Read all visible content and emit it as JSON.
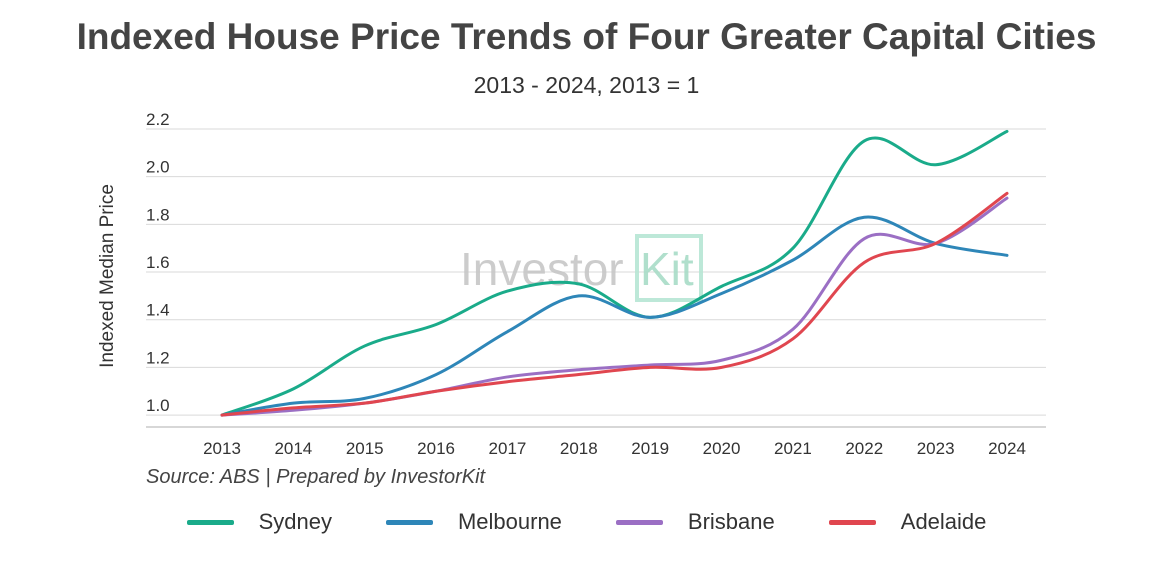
{
  "chart_data": {
    "type": "line",
    "title": "Indexed House Price Trends of Four Greater Capital Cities",
    "subtitle": "2013 - 2024, 2013 = 1",
    "xlabel": "",
    "ylabel": "Indexed Median Price",
    "x": [
      "2013",
      "2014",
      "2015",
      "2016",
      "2017",
      "2018",
      "2019",
      "2020",
      "2021",
      "2022",
      "2023",
      "2024"
    ],
    "ylim": [
      0.95,
      2.2
    ],
    "yticks": [
      {
        "value": 1.0,
        "label": "1.0"
      },
      {
        "value": 1.2,
        "label": "1.2"
      },
      {
        "value": 1.4,
        "label": "1.4"
      },
      {
        "value": 1.6,
        "label": "1.6"
      },
      {
        "value": 1.8,
        "label": "1.8"
      },
      {
        "value": 2.0,
        "label": "2.0"
      },
      {
        "value": 2.2,
        "label": "2.2"
      }
    ],
    "grid": true,
    "legend_position": "bottom",
    "series": [
      {
        "name": "Sydney",
        "color": "#1aab8a",
        "values": [
          1.0,
          1.11,
          1.29,
          1.38,
          1.52,
          1.55,
          1.41,
          1.54,
          1.7,
          2.15,
          2.05,
          2.19
        ]
      },
      {
        "name": "Melbourne",
        "color": "#2e86b8",
        "values": [
          1.0,
          1.05,
          1.07,
          1.17,
          1.35,
          1.5,
          1.41,
          1.51,
          1.65,
          1.83,
          1.72,
          1.67
        ]
      },
      {
        "name": "Brisbane",
        "color": "#9b6fc4",
        "values": [
          1.0,
          1.02,
          1.05,
          1.1,
          1.16,
          1.19,
          1.21,
          1.23,
          1.36,
          1.74,
          1.72,
          1.91
        ]
      },
      {
        "name": "Adelaide",
        "color": "#e0464f",
        "values": [
          1.0,
          1.03,
          1.05,
          1.1,
          1.14,
          1.17,
          1.2,
          1.2,
          1.32,
          1.64,
          1.72,
          1.93
        ]
      }
    ]
  },
  "source": "Source: ABS | Prepared by InvestorKit",
  "watermark": {
    "text_investor": "Investor",
    "text_kit": "Kit"
  }
}
